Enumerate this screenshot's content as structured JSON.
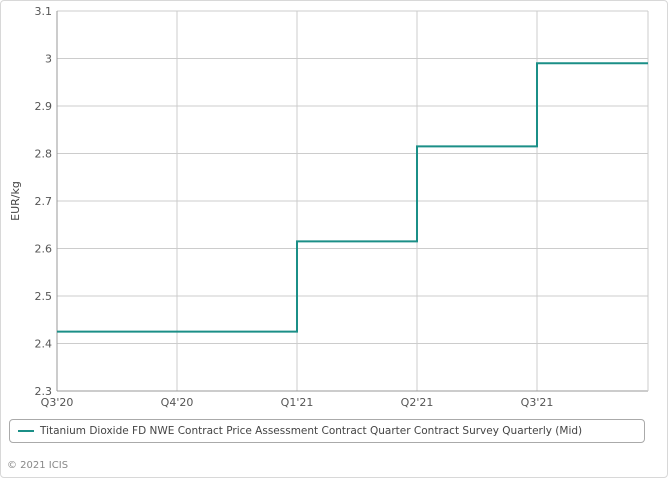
{
  "chart_data": {
    "type": "line",
    "step": true,
    "x": [
      "Q3'20",
      "Q4'20",
      "Q1'21",
      "Q2'21",
      "Q3'21"
    ],
    "series": [
      {
        "name": "Titanium Dioxide FD NWE Contract Price Assessment Contract Quarter Contract Survey Quarterly (Mid)",
        "values": [
          2.425,
          2.425,
          2.615,
          2.815,
          2.99
        ],
        "color": "#1b8f87"
      }
    ],
    "ylabel": "EUR/kg",
    "ylim": [
      2.3,
      3.1
    ],
    "yticks": [
      "2.3",
      "2.4",
      "2.5",
      "2.6",
      "2.7",
      "2.8",
      "2.9",
      "3",
      "3.1"
    ],
    "grid": true,
    "legend_position": "bottom"
  },
  "credit": "© 2021 ICIS"
}
